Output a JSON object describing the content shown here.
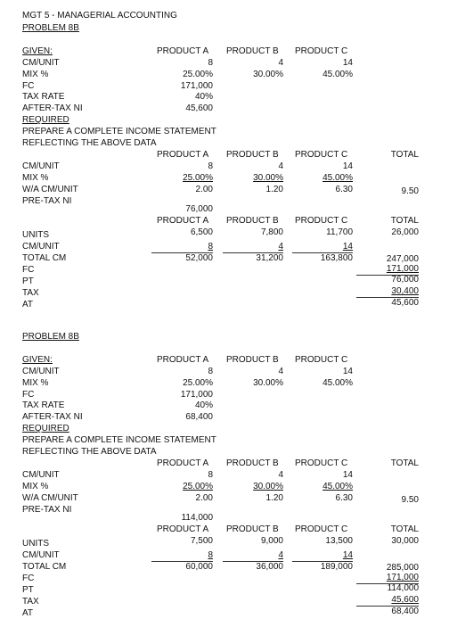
{
  "title": "MGT 5 - MANAGERIAL ACCOUNTING",
  "problems": [
    {
      "heading": "PROBLEM 8B",
      "given": {
        "label": "GIVEN:",
        "headers": [
          "PRODUCT A",
          "PRODUCT B",
          "PRODUCT C"
        ],
        "cm_unit": {
          "label": "CM/UNIT",
          "a": "8",
          "b": "4",
          "c": "14"
        },
        "mix": {
          "label": "MIX %",
          "a": "25.00%",
          "b": "30.00%",
          "c": "45.00%"
        },
        "fc": {
          "label": "FC",
          "value": "171,000"
        },
        "tax_rate": {
          "label": "TAX RATE",
          "value": "40%"
        },
        "after_tax_ni": {
          "label": "AFTER-TAX NI",
          "value": "45,600"
        }
      },
      "required": {
        "label": "REQUIRED",
        "line1": "PREPARE A COMPLETE INCOME STATEMENT",
        "line2": "REFLECTING THE ABOVE DATA"
      },
      "wa": {
        "headers": [
          "PRODUCT A",
          "PRODUCT B",
          "PRODUCT C",
          "TOTAL"
        ],
        "cm_unit": {
          "label": "CM/UNIT",
          "a": "8",
          "b": "4",
          "c": "14"
        },
        "mix": {
          "label": "MIX %",
          "a": "25.00%",
          "b": "30.00%",
          "c": "45.00%"
        },
        "wa_cm_unit": {
          "label": "W/A CM/UNIT",
          "a": "2.00",
          "b": "1.20",
          "c": "6.30",
          "total": "9.50"
        },
        "pretax_ni": {
          "label": "PRE-TAX NI",
          "value": "76,000"
        }
      },
      "units_table": {
        "headers": [
          "PRODUCT A",
          "PRODUCT B",
          "PRODUCT C",
          "TOTAL"
        ],
        "units": {
          "label": "UNITS",
          "a": "6,500",
          "b": "7,800",
          "c": "11,700",
          "total": "26,000"
        },
        "cm_unit": {
          "label": "CM/UNIT",
          "a": "8",
          "b": "4",
          "c": "14"
        },
        "total_cm": {
          "label": "TOTAL CM",
          "a": "52,000",
          "b": "31,200",
          "c": "163,800",
          "total": "247,000"
        },
        "fc": {
          "label": "FC",
          "total": "171,000"
        },
        "pt": {
          "label": "PT",
          "total": "76,000"
        },
        "tax": {
          "label": "TAX",
          "total": "30,400"
        },
        "at": {
          "label": "AT",
          "total": "45,600"
        }
      }
    },
    {
      "heading": "PROBLEM 8B",
      "given": {
        "label": "GIVEN:",
        "headers": [
          "PRODUCT A",
          "PRODUCT B",
          "PRODUCT C"
        ],
        "cm_unit": {
          "label": "CM/UNIT",
          "a": "8",
          "b": "4",
          "c": "14"
        },
        "mix": {
          "label": "MIX %",
          "a": "25.00%",
          "b": "30.00%",
          "c": "45.00%"
        },
        "fc": {
          "label": "FC",
          "value": "171,000"
        },
        "tax_rate": {
          "label": "TAX RATE",
          "value": "40%"
        },
        "after_tax_ni": {
          "label": "AFTER-TAX NI",
          "value": "68,400"
        }
      },
      "required": {
        "label": "REQUIRED",
        "line1": "PREPARE A COMPLETE INCOME STATEMENT",
        "line2": "REFLECTING THE ABOVE DATA"
      },
      "wa": {
        "headers": [
          "PRODUCT A",
          "PRODUCT B",
          "PRODUCT C",
          "TOTAL"
        ],
        "cm_unit": {
          "label": "CM/UNIT",
          "a": "8",
          "b": "4",
          "c": "14"
        },
        "mix": {
          "label": "MIX %",
          "a": "25.00%",
          "b": "30.00%",
          "c": "45.00%"
        },
        "wa_cm_unit": {
          "label": "W/A CM/UNIT",
          "a": "2.00",
          "b": "1.20",
          "c": "6.30",
          "total": "9.50"
        },
        "pretax_ni": {
          "label": "PRE-TAX NI",
          "value": "114,000"
        }
      },
      "units_table": {
        "headers": [
          "PRODUCT A",
          "PRODUCT B",
          "PRODUCT C",
          "TOTAL"
        ],
        "units": {
          "label": "UNITS",
          "a": "7,500",
          "b": "9,000",
          "c": "13,500",
          "total": "30,000"
        },
        "cm_unit": {
          "label": "CM/UNIT",
          "a": "8",
          "b": "4",
          "c": "14"
        },
        "total_cm": {
          "label": "TOTAL CM",
          "a": "60,000",
          "b": "36,000",
          "c": "189,000",
          "total": "285,000"
        },
        "fc": {
          "label": "FC",
          "total": "171,000"
        },
        "pt": {
          "label": "PT",
          "total": "114,000"
        },
        "tax": {
          "label": "TAX",
          "total": "45,600"
        },
        "at": {
          "label": "AT",
          "total": "68,400"
        }
      }
    }
  ]
}
